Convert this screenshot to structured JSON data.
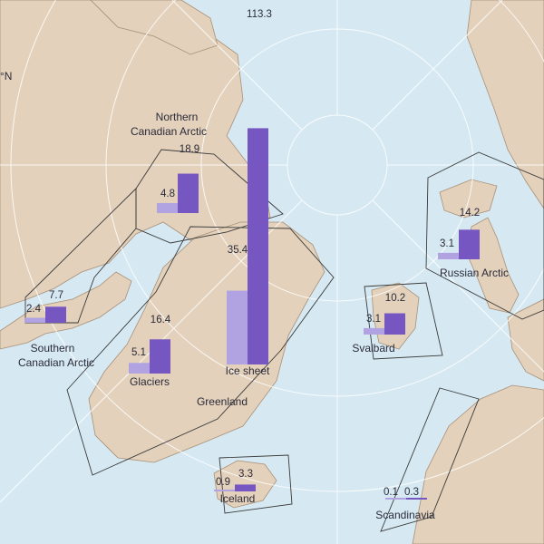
{
  "regions": [
    {
      "id": "northern-canadian-arctic",
      "name_lines": [
        "Northern",
        "Canadian Arctic"
      ],
      "small": 4.8,
      "large": 18.9
    },
    {
      "id": "southern-canadian-arctic",
      "name_lines": [
        "Southern",
        "Canadian Arctic"
      ],
      "small": 2.4,
      "large": 7.7
    },
    {
      "id": "greenland-glaciers",
      "name_lines": [
        "Glaciers"
      ],
      "small": 5.1,
      "large": 16.4
    },
    {
      "id": "greenland-ice-sheet",
      "name_lines": [
        "Ice sheet"
      ],
      "small": 35.4,
      "large": 113.3
    },
    {
      "id": "iceland",
      "name_lines": [
        "Iceland"
      ],
      "small": 0.9,
      "large": 3.3
    },
    {
      "id": "svalbard",
      "name_lines": [
        "Svalbard"
      ],
      "small": 3.1,
      "large": 10.2
    },
    {
      "id": "russian-arctic",
      "name_lines": [
        "Russian Arctic"
      ],
      "small": 3.1,
      "large": 14.2
    },
    {
      "id": "scandinavia",
      "name_lines": [
        "Scandinavia"
      ],
      "small": 0.1,
      "large": 0.3
    }
  ],
  "greenland_label": "Greenland",
  "edge_fragment": "°N",
  "colors": {
    "ocean": "#d6e9f2",
    "land": "#e3d1bb",
    "coast": "#a89078",
    "small_bar": "#b1a3e2",
    "large_bar": "#7656c0",
    "boundary": "#3a3a3a",
    "graticule": "#ffffff"
  }
}
